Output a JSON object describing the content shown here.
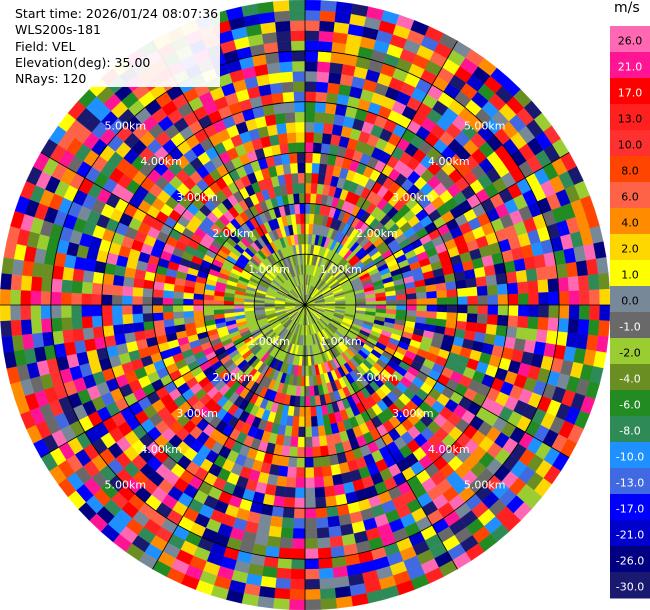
{
  "info": {
    "start_time": "Start time: 2026/01/24 08:07:36",
    "instrument": "WLS200s-181",
    "field": "Field: VEL",
    "elevation": "Elevation(deg): 35.00",
    "nrays": "NRays: 120"
  },
  "chart_data": {
    "type": "heatmap",
    "subtype": "polar PPI scan",
    "field": "VEL",
    "units": "m/s",
    "n_rays": 120,
    "elevation_deg": 35.0,
    "max_range_km": 6.0,
    "range_rings_km": [
      1.0,
      2.0,
      3.0,
      4.0,
      5.0
    ],
    "ring_labels": [
      "1.00km",
      "2.00km",
      "3.00km",
      "4.00km",
      "5.00km"
    ],
    "grid": true,
    "colorbar_position": "right",
    "colorbar": {
      "title": "m/s",
      "ticks": [
        26.0,
        21.0,
        17.0,
        13.0,
        10.0,
        8.0,
        6.0,
        4.0,
        2.0,
        1.0,
        0.0,
        -1.0,
        -2.0,
        -4.0,
        -6.0,
        -8.0,
        -10.0,
        -13.0,
        -17.0,
        -21.0,
        -26.0,
        -30.0
      ],
      "tick_labels": [
        "26.0",
        "21.0",
        "17.0",
        "13.0",
        "10.0",
        "8.0",
        "6.0",
        "4.0",
        "2.0",
        "1.0",
        "0.0",
        "-1.0",
        "-2.0",
        "-4.0",
        "-6.0",
        "-8.0",
        "-10.0",
        "-13.0",
        "-17.0",
        "-21.0",
        "-26.0",
        "-30.0"
      ],
      "colors": [
        "#ff69b4",
        "#ff1493",
        "#ff0000",
        "#ff2020",
        "#ff3030",
        "#ff4500",
        "#ff6347",
        "#ff8c00",
        "#ffd700",
        "#ffff00",
        "#778899",
        "#696969",
        "#9acd32",
        "#6b8e23",
        "#228b22",
        "#2e8b57",
        "#1e90ff",
        "#4169e1",
        "#0000ff",
        "#0000cd",
        "#000080",
        "#191970"
      ]
    }
  }
}
